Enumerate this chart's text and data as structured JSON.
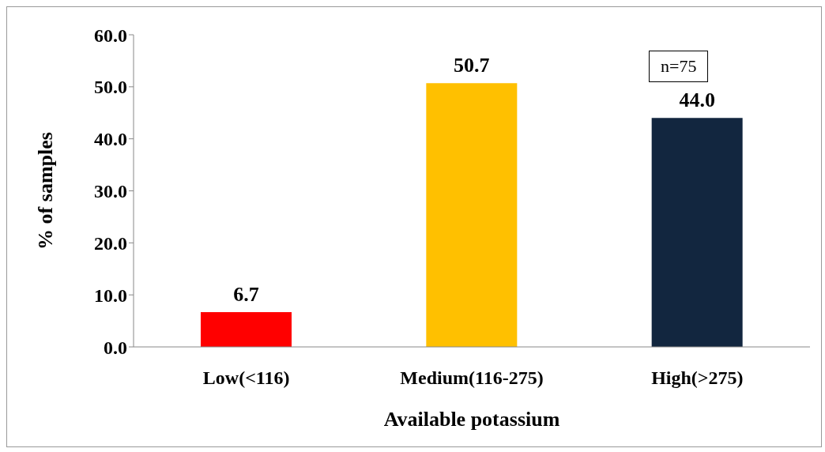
{
  "chart_data": {
    "type": "bar",
    "xlabel": "Available potassium",
    "ylabel": "% of samples",
    "categories": [
      "Low(<116)",
      "Medium(116-275)",
      "High(>275)"
    ],
    "values": [
      6.7,
      50.7,
      44.0
    ],
    "colors": [
      "#ff0000",
      "#ffc000",
      "#12263f"
    ],
    "value_labels": [
      "6.7",
      "50.7",
      "44.0"
    ],
    "ylim": [
      0,
      60
    ],
    "yticks": [
      {
        "value": 0,
        "label": "0.0"
      },
      {
        "value": 10,
        "label": "10.0"
      },
      {
        "value": 20,
        "label": "20.0"
      },
      {
        "value": 30,
        "label": "30.0"
      },
      {
        "value": 40,
        "label": "40.0"
      },
      {
        "value": 50,
        "label": "50.0"
      },
      {
        "value": 60,
        "label": "60.0"
      }
    ],
    "annotations": [
      "n=75"
    ]
  }
}
